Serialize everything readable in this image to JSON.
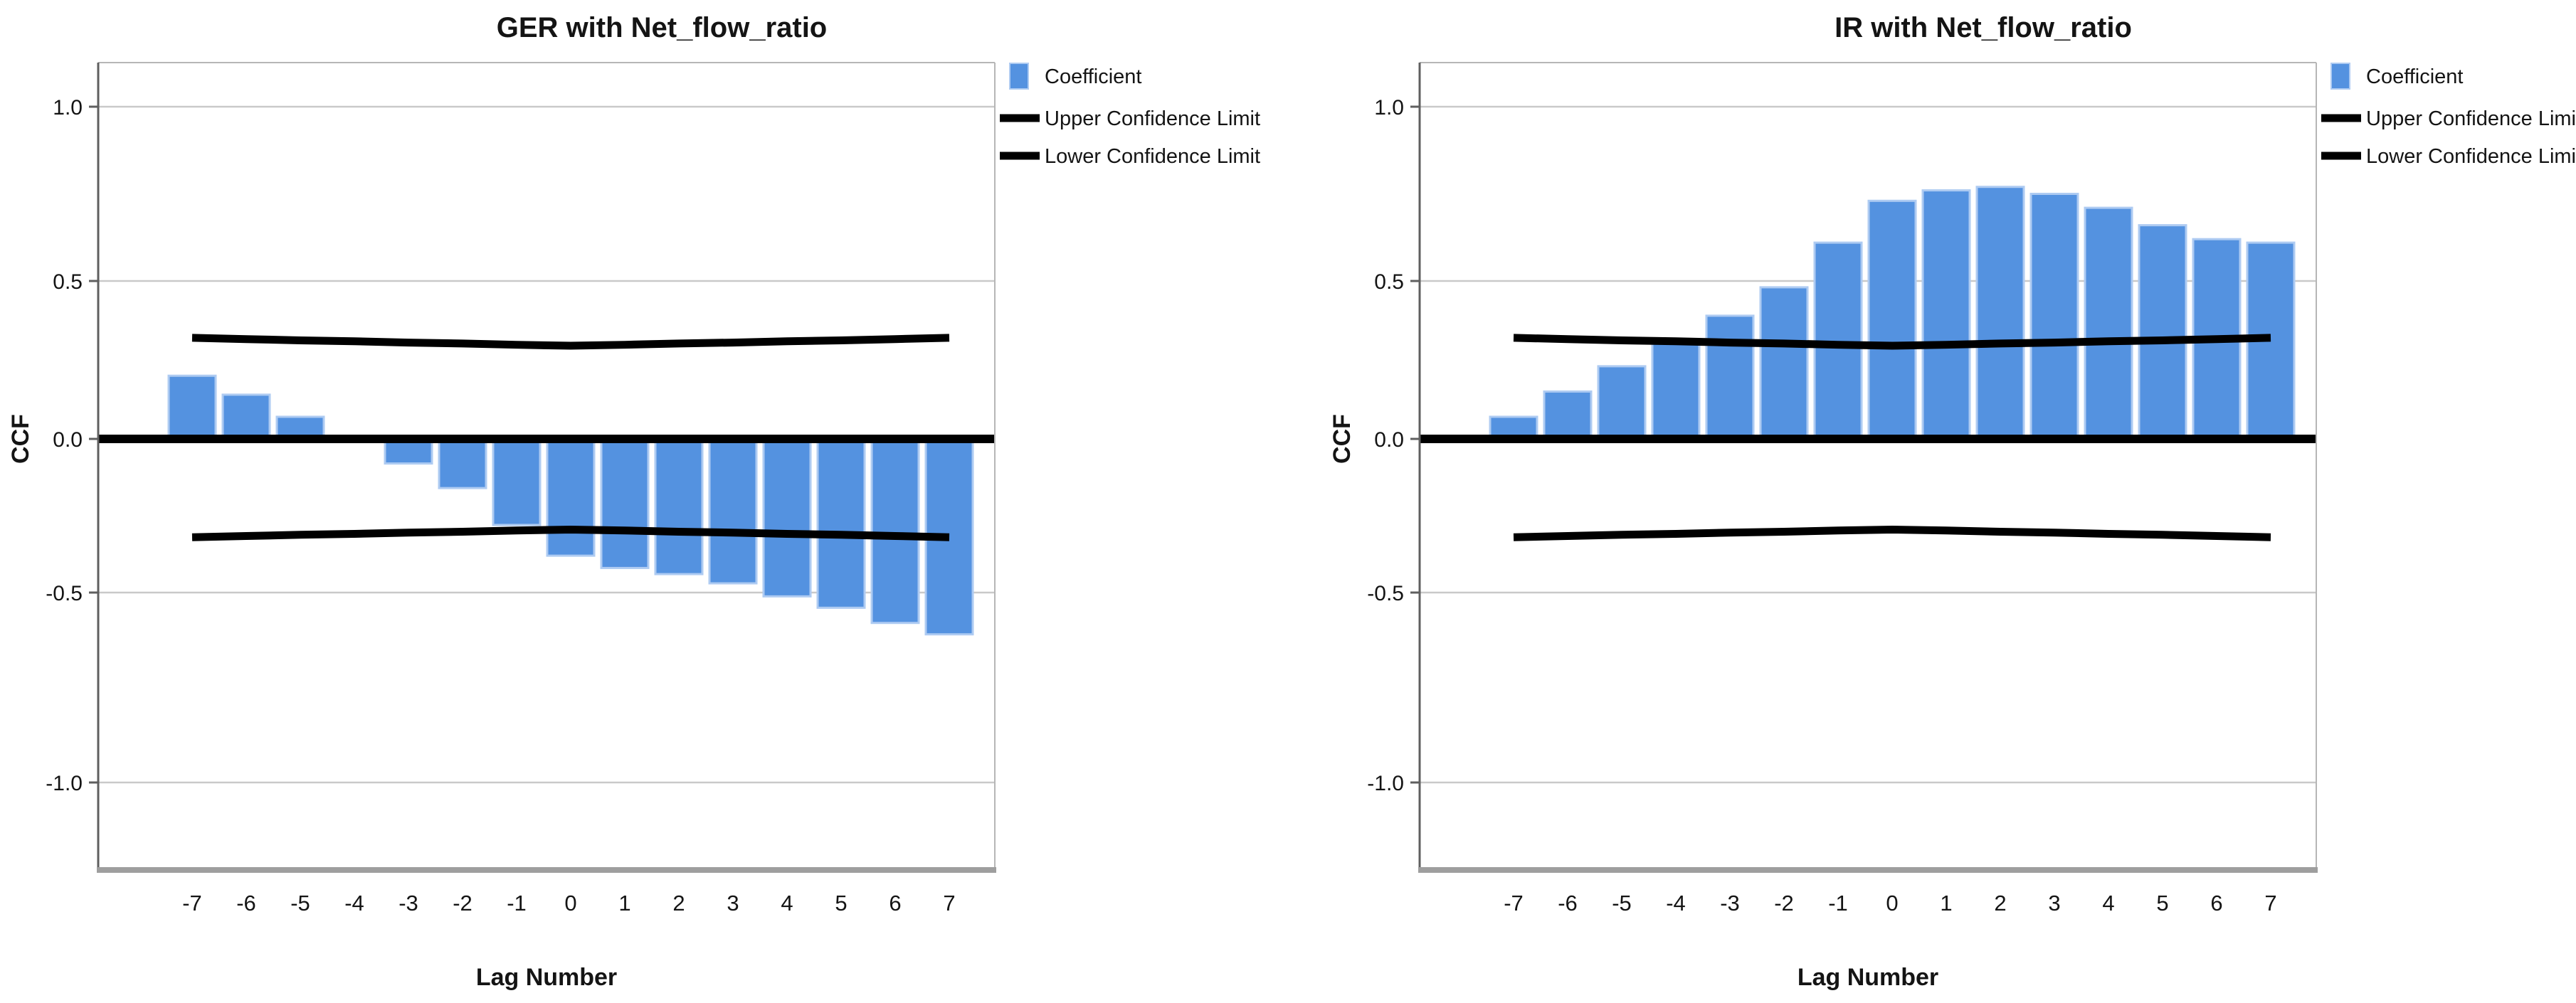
{
  "figure": {
    "background": "#ffffff",
    "description": "Two SPSS cross-correlation (CCF) bar charts side by side"
  },
  "colors": {
    "bar_fill": "#5492E0",
    "bar_border": "#AECBF2",
    "confidence_line": "#000000",
    "zero_line": "#000000",
    "gridline": "#C9C9C9",
    "plot_border": "#B6B6B6",
    "axis_spine": "#5F5F5F",
    "bottom_spine": "#9E9E9E",
    "text": "#141414"
  },
  "legend": {
    "items": [
      {
        "label": "Coefficient",
        "swatch": "bar"
      },
      {
        "label": "Upper Confidence Limit",
        "swatch": "line"
      },
      {
        "label": "Lower Confidence Limit",
        "swatch": "line"
      }
    ]
  },
  "chart_data": [
    {
      "type": "bar",
      "title": "GER with Net_flow_ratio",
      "xlabel": "Lag Number",
      "ylabel": "CCF",
      "categories": [
        -7,
        -6,
        -5,
        -4,
        -3,
        -2,
        -1,
        0,
        1,
        2,
        3,
        4,
        5,
        6,
        7
      ],
      "ytick_labels": [
        "1.0",
        "0.5",
        "0.0",
        "-0.5",
        "-1.0"
      ],
      "ytick_values": [
        1.0,
        0.5,
        0.0,
        -0.5,
        -1.0
      ],
      "ylim": [
        -1.0,
        1.0
      ],
      "grid": "horizontal",
      "legend_position": "top-right",
      "series": [
        {
          "name": "Coefficient",
          "values": [
            0.2,
            0.14,
            0.07,
            0.01,
            -0.08,
            -0.16,
            -0.28,
            -0.38,
            -0.42,
            -0.44,
            -0.47,
            -0.51,
            -0.54,
            -0.58,
            -0.61
          ]
        },
        {
          "name": "Upper Confidence Limit",
          "values": [
            0.32,
            0.316,
            0.312,
            0.309,
            0.305,
            0.302,
            0.298,
            0.295,
            0.298,
            0.302,
            0.305,
            0.309,
            0.312,
            0.316,
            0.32
          ]
        },
        {
          "name": "Lower Confidence Limit",
          "values": [
            -0.32,
            -0.316,
            -0.312,
            -0.309,
            -0.305,
            -0.302,
            -0.298,
            -0.295,
            -0.298,
            -0.302,
            -0.305,
            -0.309,
            -0.312,
            -0.316,
            -0.32
          ]
        }
      ]
    },
    {
      "type": "bar",
      "title": "IR with Net_flow_ratio",
      "xlabel": "Lag Number",
      "ylabel": "CCF",
      "categories": [
        -7,
        -6,
        -5,
        -4,
        -3,
        -2,
        -1,
        0,
        1,
        2,
        3,
        4,
        5,
        6,
        7
      ],
      "ytick_labels": [
        "1.0",
        "0.5",
        "0.0",
        "-0.5",
        "-1.0"
      ],
      "ytick_values": [
        1.0,
        0.5,
        0.0,
        -0.5,
        -1.0
      ],
      "ylim": [
        -1.0,
        1.0
      ],
      "grid": "horizontal",
      "legend_position": "top-right",
      "series": [
        {
          "name": "Coefficient",
          "values": [
            0.07,
            0.15,
            0.23,
            0.31,
            0.39,
            0.48,
            0.61,
            0.73,
            0.76,
            0.77,
            0.75,
            0.71,
            0.66,
            0.62,
            0.61
          ]
        },
        {
          "name": "Upper Confidence Limit",
          "values": [
            0.32,
            0.316,
            0.312,
            0.309,
            0.305,
            0.302,
            0.298,
            0.295,
            0.298,
            0.302,
            0.305,
            0.309,
            0.312,
            0.316,
            0.32
          ]
        },
        {
          "name": "Lower Confidence Limit",
          "values": [
            -0.32,
            -0.316,
            -0.312,
            -0.309,
            -0.305,
            -0.302,
            -0.298,
            -0.295,
            -0.298,
            -0.302,
            -0.305,
            -0.309,
            -0.312,
            -0.316,
            -0.32
          ]
        }
      ]
    }
  ]
}
